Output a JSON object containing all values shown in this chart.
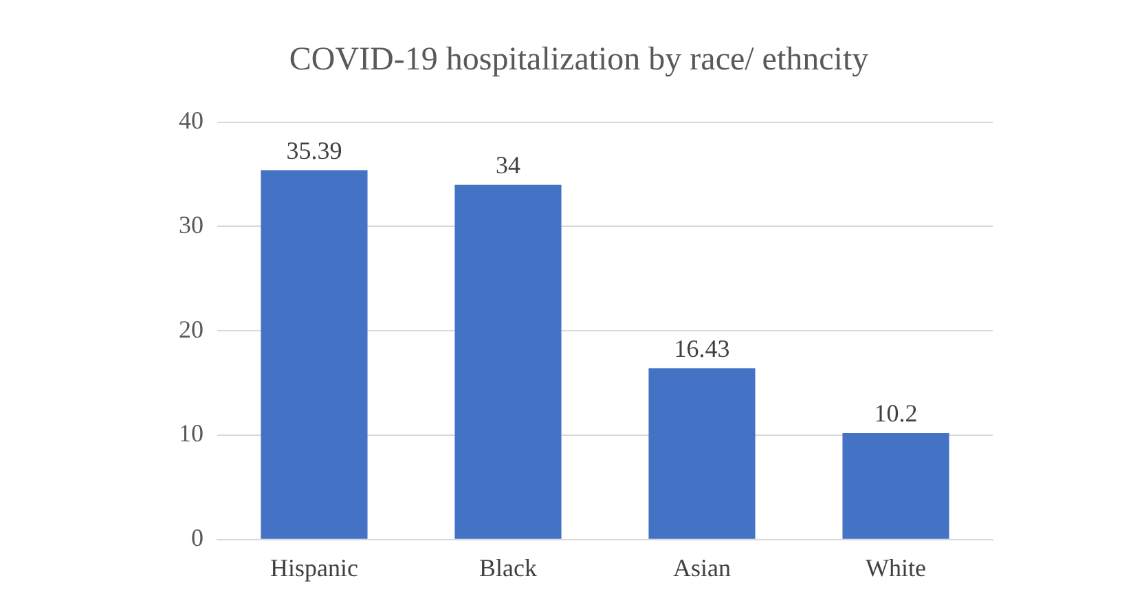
{
  "chart_data": {
    "type": "bar",
    "title": "COVID-19 hospitalization by race/ ethncity",
    "categories": [
      "Hispanic",
      "Black",
      "Asian",
      "White"
    ],
    "values": [
      35.39,
      34,
      16.43,
      10.2
    ],
    "color": "#4472c4",
    "ylim": [
      0,
      40
    ],
    "yticks": [
      0,
      10,
      20,
      30,
      40
    ],
    "grid": "y",
    "data_labels": true,
    "legend": false
  }
}
